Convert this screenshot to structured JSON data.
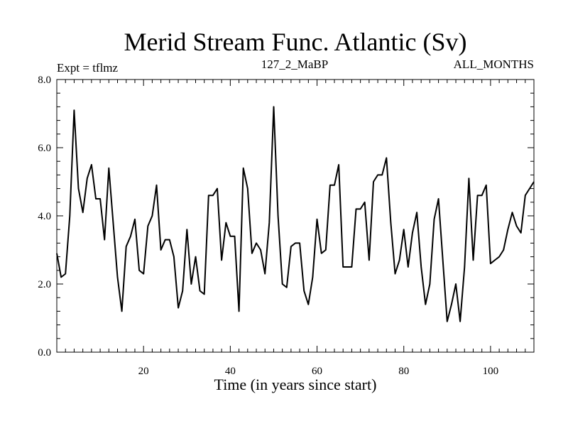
{
  "chart_data": {
    "type": "line",
    "title": "Merid Stream Func. Atlantic (Sv)",
    "left_label": "Expt = tflmz",
    "center_label": "127_2_MaBP",
    "right_label": "ALL_MONTHS",
    "xlabel": "Time (in years since start)",
    "ylabel": "",
    "xlim": [
      0,
      110
    ],
    "ylim": [
      0,
      8
    ],
    "xticks": [
      20,
      40,
      60,
      80,
      100
    ],
    "xtick_labels": [
      "20",
      "40",
      "60",
      "80",
      "100"
    ],
    "yticks": [
      0,
      2,
      4,
      6,
      8
    ],
    "ytick_labels": [
      "0.0",
      "2.0",
      "4.0",
      "6.0",
      "8.0"
    ],
    "grid": false,
    "line_color": "#000000",
    "series": [
      {
        "name": "Merid Stream Func. Atlantic",
        "x": [
          0,
          1,
          2,
          3,
          4,
          5,
          6,
          7,
          8,
          9,
          10,
          11,
          12,
          13,
          14,
          15,
          16,
          17,
          18,
          19,
          20,
          21,
          22,
          23,
          24,
          25,
          26,
          27,
          28,
          29,
          30,
          31,
          32,
          33,
          34,
          35,
          36,
          37,
          38,
          39,
          40,
          41,
          42,
          43,
          44,
          45,
          46,
          47,
          48,
          49,
          50,
          51,
          52,
          53,
          54,
          55,
          56,
          57,
          58,
          59,
          60,
          61,
          62,
          63,
          64,
          65,
          66,
          67,
          68,
          69,
          70,
          71,
          72,
          73,
          74,
          75,
          76,
          77,
          78,
          79,
          80,
          81,
          82,
          83,
          84,
          85,
          86,
          87,
          88,
          89,
          90,
          91,
          92,
          93,
          94,
          95,
          96,
          97,
          98,
          99,
          100,
          101,
          102,
          103,
          104,
          105,
          106,
          107,
          108,
          109,
          110
        ],
        "values": [
          2.9,
          2.2,
          2.3,
          4.0,
          7.1,
          4.8,
          4.1,
          5.1,
          5.5,
          4.5,
          4.5,
          3.3,
          5.4,
          3.8,
          2.2,
          1.2,
          3.1,
          3.4,
          3.9,
          2.4,
          2.3,
          3.7,
          4.0,
          4.9,
          3.0,
          3.3,
          3.3,
          2.8,
          1.3,
          1.8,
          3.6,
          2.0,
          2.8,
          1.8,
          1.7,
          4.6,
          4.6,
          4.8,
          2.7,
          3.8,
          3.4,
          3.4,
          1.2,
          5.4,
          4.8,
          2.9,
          3.2,
          3.0,
          2.3,
          3.8,
          7.2,
          4.0,
          2.0,
          1.9,
          3.1,
          3.2,
          3.2,
          1.8,
          1.4,
          2.2,
          3.9,
          2.9,
          3.0,
          4.9,
          4.9,
          5.5,
          2.5,
          2.5,
          2.5,
          4.2,
          4.2,
          4.4,
          2.7,
          5.0,
          5.2,
          5.2,
          5.7,
          3.8,
          2.3,
          2.7,
          3.6,
          2.5,
          3.5,
          4.1,
          2.5,
          1.4,
          2.0,
          3.9,
          4.5,
          2.7,
          0.9,
          1.4,
          2.0,
          0.9,
          2.5,
          5.1,
          2.7,
          4.6,
          4.6,
          4.9,
          2.6,
          2.7,
          2.8,
          3.0,
          3.6,
          4.1,
          3.7,
          3.5,
          4.6,
          4.8,
          5.0
        ]
      }
    ]
  }
}
